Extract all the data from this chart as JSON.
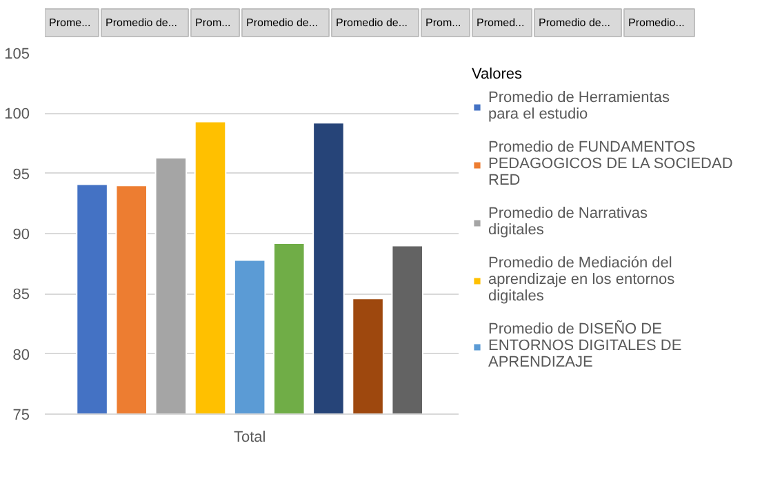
{
  "chart_data": {
    "type": "bar",
    "annotations": [
      "Prome...",
      "Promedio de...",
      "Prom...",
      "Promedio de...",
      "Promedio de...",
      "Prom...",
      "Promed...",
      "Promedio de...",
      "Promedio..."
    ],
    "legend_title": "Valores",
    "categories": [
      "Total"
    ],
    "series": [
      {
        "name": "Promedio de Herramientas para el estudio",
        "color": "#4472c4",
        "values": [
          94.1
        ]
      },
      {
        "name": "Promedio de FUNDAMENTOS PEDAGOGICOS DE LA SOCIEDAD RED",
        "color": "#ed7d31",
        "values": [
          94.0
        ]
      },
      {
        "name": "Promedio de Narrativas digitales",
        "color": "#a5a5a5",
        "values": [
          96.3
        ]
      },
      {
        "name": "Promedio de Mediación del aprendizaje en los entornos digitales",
        "color": "#ffc000",
        "values": [
          99.3
        ]
      },
      {
        "name": "Promedio de DISEÑO DE ENTORNOS DIGITALES DE APRENDIZAJE",
        "color": "#5b9bd5",
        "values": [
          87.8
        ]
      },
      {
        "color": "#70ad47",
        "values": [
          89.2
        ]
      },
      {
        "color": "#264478",
        "values": [
          99.2
        ]
      },
      {
        "color": "#9e480e",
        "values": [
          84.6
        ]
      },
      {
        "color": "#636363",
        "values": [
          89.0
        ]
      }
    ],
    "ylim": [
      75,
      105
    ],
    "yticks": [
      75,
      80,
      85,
      90,
      95,
      100,
      105
    ],
    "grid": "y",
    "legend": "right"
  }
}
